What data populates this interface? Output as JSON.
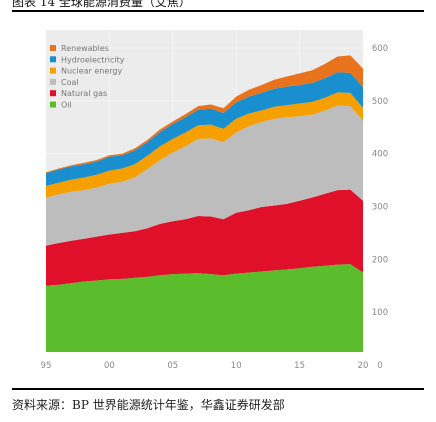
{
  "header": {
    "title": "图表 14 全球能源消费量（艾焦）"
  },
  "footer": {
    "source": "资料来源：BP 世界能源统计年鉴，华鑫证券研发部"
  },
  "chart_data": {
    "type": "area",
    "stacked": true,
    "title": "",
    "xlabel": "",
    "ylabel": "",
    "x": [
      1995,
      1996,
      1997,
      1998,
      1999,
      2000,
      2001,
      2002,
      2003,
      2004,
      2005,
      2006,
      2007,
      2008,
      2009,
      2010,
      2011,
      2012,
      2013,
      2014,
      2015,
      2016,
      2017,
      2018,
      2019,
      2020
    ],
    "xtick_labels": [
      "95",
      "00",
      "05",
      "10",
      "15",
      "20"
    ],
    "ytick_labels": [
      "0",
      "100",
      "200",
      "300",
      "400",
      "500",
      "600"
    ],
    "ylim": [
      0,
      600
    ],
    "legend_position": "top-left",
    "series": [
      {
        "name": "Oil",
        "color": "#5bbd2b",
        "values": [
          150,
          152,
          155,
          158,
          160,
          162,
          163,
          165,
          167,
          170,
          172,
          173,
          174,
          172,
          170,
          173,
          175,
          177,
          179,
          181,
          183,
          186,
          188,
          190,
          191,
          175
        ]
      },
      {
        "name": "Natural gas",
        "color": "#e0102a",
        "values": [
          76,
          79,
          80,
          81,
          83,
          85,
          87,
          88,
          92,
          97,
          100,
          103,
          108,
          109,
          106,
          115,
          118,
          122,
          123,
          124,
          128,
          131,
          136,
          141,
          141,
          136
        ]
      },
      {
        "name": "Coal",
        "color": "#bdbdbd",
        "values": [
          91,
          92,
          93,
          92,
          93,
          96,
          97,
          102,
          112,
          121,
          130,
          138,
          146,
          148,
          146,
          152,
          159,
          161,
          164,
          164,
          160,
          157,
          158,
          160,
          158,
          152
        ]
      },
      {
        "name": "Nuclear energy",
        "color": "#f5a000",
        "values": [
          22,
          22,
          23,
          24,
          24,
          25,
          25,
          25,
          25,
          26,
          26,
          26,
          26,
          26,
          25,
          26,
          24,
          22,
          23,
          23,
          24,
          24,
          24,
          25,
          25,
          24
        ]
      },
      {
        "name": "Hydroelectricity",
        "color": "#1a8fd0",
        "values": [
          24,
          25,
          25,
          25,
          25,
          26,
          25,
          26,
          26,
          27,
          28,
          29,
          29,
          30,
          30,
          31,
          32,
          33,
          34,
          35,
          35,
          36,
          37,
          38,
          38,
          39
        ]
      },
      {
        "name": "Renewables",
        "color": "#e8731c",
        "values": [
          2,
          2,
          2,
          3,
          3,
          3,
          3,
          4,
          4,
          5,
          5,
          6,
          7,
          8,
          9,
          11,
          13,
          15,
          17,
          19,
          22,
          24,
          27,
          30,
          33,
          35
        ]
      }
    ]
  }
}
